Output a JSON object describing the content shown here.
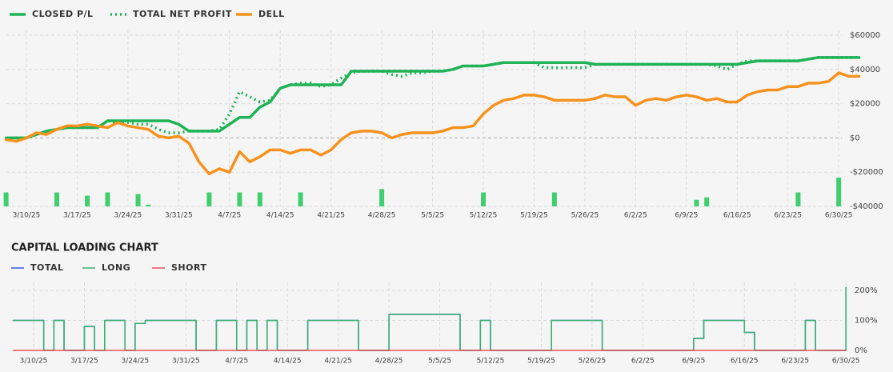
{
  "chart_data": [
    {
      "type": "line",
      "ylim": [
        -40000,
        60000
      ],
      "yticks": [
        {
          "value": 60000,
          "label": "$60000"
        },
        {
          "value": 40000,
          "label": "$40000"
        },
        {
          "value": 20000,
          "label": "$20000"
        },
        {
          "value": 0,
          "label": "$0"
        },
        {
          "value": -20000,
          "label": "-$20000"
        },
        {
          "value": -40000,
          "label": "-$40000"
        }
      ],
      "grid": true,
      "categories": [
        null,
        null,
        "3/10/25",
        null,
        null,
        null,
        null,
        "3/17/25",
        null,
        null,
        null,
        null,
        "3/24/25",
        null,
        null,
        null,
        null,
        "3/31/25",
        null,
        null,
        null,
        null,
        "4/7/25",
        null,
        null,
        null,
        null,
        "4/14/25",
        null,
        null,
        null,
        null,
        "4/21/25",
        null,
        null,
        null,
        null,
        "4/28/25",
        null,
        null,
        null,
        null,
        "5/5/25",
        null,
        null,
        null,
        null,
        "5/12/25",
        null,
        null,
        null,
        null,
        "5/19/25",
        null,
        null,
        null,
        null,
        "5/26/25",
        null,
        null,
        null,
        null,
        "6/2/25",
        null,
        null,
        null,
        null,
        "6/9/25",
        null,
        null,
        null,
        null,
        "6/16/25",
        null,
        null,
        null,
        null,
        "6/23/25",
        null,
        null,
        null,
        null,
        "6/30/25",
        null,
        null
      ],
      "series": [
        {
          "name": "CLOSED P/L",
          "color": "#1fb356",
          "dash": "solid",
          "values": [
            0,
            0,
            0,
            2000,
            4000,
            5000,
            6000,
            6000,
            6000,
            6000,
            10000,
            10000,
            10000,
            10000,
            10000,
            10000,
            10000,
            8000,
            4000,
            4000,
            4000,
            4000,
            8000,
            12000,
            12000,
            18000,
            21000,
            29000,
            31000,
            31000,
            31000,
            31000,
            31000,
            31000,
            39000,
            39000,
            39000,
            39000,
            39000,
            39000,
            39000,
            39000,
            39000,
            39000,
            40000,
            42000,
            42000,
            42000,
            43000,
            44000,
            44000,
            44000,
            44000,
            44000,
            44000,
            44000,
            44000,
            44000,
            43000,
            43000,
            43000,
            43000,
            43000,
            43000,
            43000,
            43000,
            43000,
            43000,
            43000,
            43000,
            43000,
            43000,
            43000,
            44000,
            45000,
            45000,
            45000,
            45000,
            45000,
            46000,
            47000,
            47000,
            47000,
            47000,
            47000
          ]
        },
        {
          "name": "TOTAL NET PROFIT",
          "color": "#1fb356",
          "dash": "dotted",
          "values": [
            0,
            0,
            0,
            2000,
            4000,
            5000,
            6000,
            6000,
            6000,
            6000,
            10000,
            9000,
            9000,
            8000,
            8000,
            5000,
            3000,
            3000,
            4000,
            4000,
            4000,
            5000,
            14000,
            27000,
            24000,
            21000,
            22000,
            29000,
            31000,
            32000,
            32000,
            30000,
            31000,
            35000,
            38000,
            39000,
            39000,
            39000,
            37000,
            36000,
            38000,
            38000,
            39000,
            39000,
            40000,
            42000,
            42000,
            42000,
            43000,
            44000,
            44000,
            44000,
            44000,
            41000,
            41000,
            41000,
            41000,
            41000,
            43000,
            43000,
            43000,
            43000,
            43000,
            43000,
            43000,
            43000,
            43000,
            43000,
            43000,
            43000,
            42000,
            40000,
            43000,
            45000,
            45000,
            45000,
            45000,
            45000,
            45000,
            46000,
            47000,
            47000,
            47000,
            47000,
            47000
          ]
        },
        {
          "name": "DELL",
          "color": "#f7921e",
          "dash": "solid",
          "values": [
            -1000,
            -2000,
            0,
            3000,
            2000,
            5000,
            7000,
            7000,
            8000,
            7000,
            6000,
            9000,
            7000,
            6000,
            5000,
            1000,
            0,
            1000,
            -3000,
            -14000,
            -21000,
            -18000,
            -20000,
            -8000,
            -14000,
            -11000,
            -7000,
            -7000,
            -9000,
            -7000,
            -7000,
            -10000,
            -7000,
            -1000,
            3000,
            4000,
            4000,
            3000,
            0,
            2000,
            3000,
            3000,
            3000,
            4000,
            6000,
            6000,
            7000,
            14000,
            19000,
            22000,
            23000,
            25000,
            25000,
            24000,
            22000,
            22000,
            22000,
            22000,
            23000,
            25000,
            24000,
            24000,
            19000,
            22000,
            23000,
            22000,
            24000,
            25000,
            24000,
            22000,
            23000,
            21000,
            21000,
            25000,
            27000,
            28000,
            28000,
            30000,
            30000,
            32000,
            32000,
            33000,
            38000,
            36000,
            36000
          ]
        }
      ],
      "bars": {
        "color": "#3fcf6f",
        "values": [
          17,
          null,
          null,
          null,
          null,
          17,
          null,
          null,
          13,
          null,
          17,
          null,
          null,
          15,
          2,
          null,
          null,
          null,
          null,
          null,
          17,
          null,
          null,
          17,
          null,
          17,
          null,
          null,
          null,
          17,
          null,
          null,
          null,
          null,
          null,
          null,
          null,
          21,
          null,
          null,
          null,
          null,
          null,
          null,
          null,
          null,
          null,
          17,
          null,
          null,
          null,
          null,
          null,
          null,
          17,
          null,
          null,
          null,
          null,
          null,
          null,
          null,
          null,
          null,
          null,
          null,
          null,
          null,
          8,
          11,
          null,
          null,
          null,
          null,
          null,
          null,
          null,
          null,
          17,
          null,
          null,
          null,
          35,
          null,
          null
        ]
      }
    },
    {
      "type": "line",
      "title": "CAPITAL LOADING CHART",
      "step": true,
      "ylim": [
        0,
        200
      ],
      "yticks": [
        {
          "value": 200,
          "label": "200%"
        },
        {
          "value": 100,
          "label": "100%"
        },
        {
          "value": 0,
          "label": "0%"
        }
      ],
      "grid": true,
      "categories": [
        null,
        null,
        "3/10/25",
        null,
        null,
        null,
        null,
        "3/17/25",
        null,
        null,
        null,
        null,
        "3/24/25",
        null,
        null,
        null,
        null,
        "3/31/25",
        null,
        null,
        null,
        null,
        "4/7/25",
        null,
        null,
        null,
        null,
        "4/14/25",
        null,
        null,
        null,
        null,
        "4/21/25",
        null,
        null,
        null,
        null,
        "4/28/25",
        null,
        null,
        null,
        null,
        "5/5/25",
        null,
        null,
        null,
        null,
        "5/12/25",
        null,
        null,
        null,
        null,
        "5/19/25",
        null,
        null,
        null,
        null,
        "5/26/25",
        null,
        null,
        null,
        null,
        "6/2/25",
        null,
        null,
        null,
        null,
        "6/9/25",
        null,
        null,
        null,
        null,
        "6/16/25",
        null,
        null,
        null,
        null,
        "6/23/25",
        null,
        null,
        null,
        null,
        "6/30/25",
        null,
        null
      ],
      "series": [
        {
          "name": "TOTAL",
          "color": "#3b5bdb",
          "dash": "solid",
          "values": [
            100,
            100,
            100,
            0,
            100,
            0,
            0,
            80,
            0,
            100,
            100,
            0,
            90,
            100,
            100,
            100,
            100,
            100,
            0,
            0,
            100,
            100,
            0,
            100,
            0,
            100,
            0,
            0,
            0,
            100,
            100,
            100,
            100,
            100,
            0,
            0,
            0,
            120,
            120,
            120,
            120,
            120,
            120,
            120,
            0,
            0,
            100,
            0,
            0,
            0,
            0,
            0,
            0,
            100,
            100,
            100,
            100,
            100,
            0,
            0,
            0,
            0,
            0,
            0,
            0,
            0,
            0,
            40,
            100,
            100,
            100,
            100,
            60,
            0,
            0,
            0,
            0,
            0,
            100,
            0,
            0,
            0,
            210,
            null,
            null
          ]
        },
        {
          "name": "LONG",
          "color": "#3cb371",
          "dash": "solid",
          "values": [
            100,
            100,
            100,
            0,
            100,
            0,
            0,
            80,
            0,
            100,
            100,
            0,
            90,
            100,
            100,
            100,
            100,
            100,
            0,
            0,
            100,
            100,
            0,
            100,
            0,
            100,
            0,
            0,
            0,
            100,
            100,
            100,
            100,
            100,
            0,
            0,
            0,
            120,
            120,
            120,
            120,
            120,
            120,
            120,
            0,
            0,
            100,
            0,
            0,
            0,
            0,
            0,
            0,
            100,
            100,
            100,
            100,
            100,
            0,
            0,
            0,
            0,
            0,
            0,
            0,
            0,
            0,
            40,
            100,
            100,
            100,
            100,
            60,
            0,
            0,
            0,
            0,
            0,
            100,
            0,
            0,
            0,
            210,
            null,
            null
          ]
        },
        {
          "name": "SHORT",
          "color": "#e8505b",
          "dash": "solid",
          "values": [
            0,
            0,
            0,
            0,
            0,
            0,
            0,
            0,
            0,
            0,
            0,
            0,
            0,
            0,
            0,
            0,
            0,
            0,
            0,
            0,
            0,
            0,
            0,
            0,
            0,
            0,
            0,
            0,
            0,
            0,
            0,
            0,
            0,
            0,
            0,
            0,
            0,
            0,
            0,
            0,
            0,
            0,
            0,
            0,
            0,
            0,
            0,
            0,
            0,
            0,
            0,
            0,
            0,
            0,
            0,
            0,
            0,
            0,
            0,
            0,
            0,
            0,
            0,
            0,
            0,
            0,
            0,
            0,
            0,
            0,
            0,
            0,
            0,
            0,
            0,
            0,
            0,
            0,
            0,
            0,
            0,
            0,
            0,
            null,
            null
          ]
        }
      ]
    }
  ]
}
